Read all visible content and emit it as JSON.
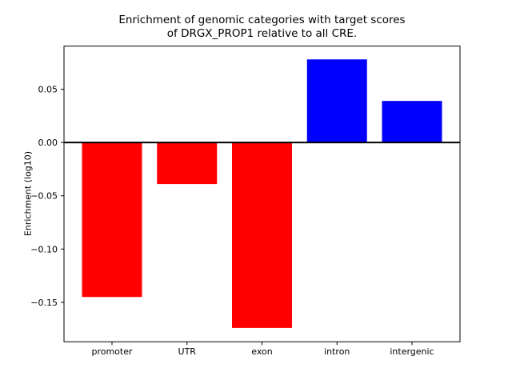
{
  "figure": {
    "title_line1": "Enrichment of genomic categories with target scores",
    "title_line2": "of DRGX_PROP1 relative to all CRE.",
    "ylabel": "Enrichment (log10)"
  },
  "chart_data": {
    "type": "bar",
    "categories": [
      "promoter",
      "UTR",
      "exon",
      "intron",
      "intergenic"
    ],
    "values": [
      -0.145,
      -0.039,
      -0.174,
      0.078,
      0.039
    ],
    "bar_colors": [
      "#ff0000",
      "#ff0000",
      "#ff0000",
      "#0000ff",
      "#0000ff"
    ],
    "title": "Enrichment of genomic categories with target scores\nof DRGX_PROP1 relative to all CRE.",
    "xlabel": "",
    "ylabel": "Enrichment (log10)",
    "ylim": [
      -0.187,
      0.0905
    ],
    "yticks": [
      0.05,
      0,
      -0.05,
      -0.1,
      -0.15
    ],
    "ytick_labels": [
      "0.05",
      "0.00",
      "−0.05",
      "−0.10",
      "−0.15"
    ],
    "grid": false,
    "legend": null,
    "zero_line": true,
    "zero_line_width": 2,
    "negative_color": "#ff0000",
    "positive_color": "#0000ff",
    "axis_color": "#000000",
    "background": "#ffffff"
  }
}
